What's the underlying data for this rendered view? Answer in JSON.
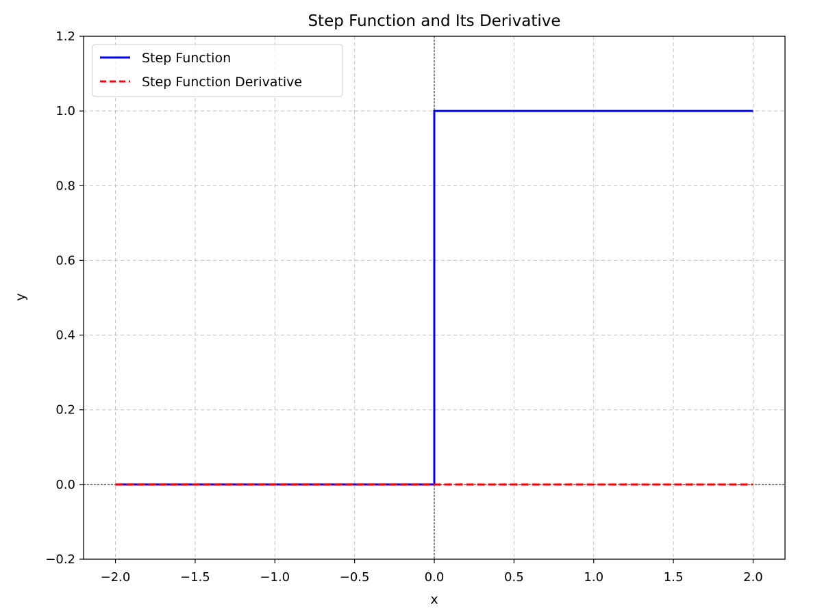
{
  "chart_data": {
    "type": "line",
    "title": "Step Function and Its Derivative",
    "xlabel": "x",
    "ylabel": "y",
    "xlim": [
      -2.2,
      2.2
    ],
    "ylim": [
      -0.2,
      1.2
    ],
    "xticks": [
      -2.0,
      -1.5,
      -1.0,
      -0.5,
      0.0,
      0.5,
      1.0,
      1.5,
      2.0
    ],
    "xtick_labels": [
      "−2.0",
      "−1.5",
      "−1.0",
      "−0.5",
      "0.0",
      "0.5",
      "1.0",
      "1.5",
      "2.0"
    ],
    "yticks": [
      -0.2,
      0.0,
      0.2,
      0.4,
      0.6,
      0.8,
      1.0,
      1.2
    ],
    "ytick_labels": [
      "−0.2",
      "0.0",
      "0.2",
      "0.4",
      "0.6",
      "0.8",
      "1.0",
      "1.2"
    ],
    "grid": true,
    "grid_style": "dashed",
    "legend_position": "top-left",
    "reference_lines": {
      "x": 0,
      "y": 0
    },
    "series": [
      {
        "name": "Step Function",
        "color": "#0000ff",
        "style": "solid",
        "x": [
          -2.0,
          0.0,
          0.0,
          2.0
        ],
        "y": [
          0.0,
          0.0,
          1.0,
          1.0
        ]
      },
      {
        "name": "Step Function Derivative",
        "color": "#ff0000",
        "style": "dashed",
        "x": [
          -2.0,
          2.0
        ],
        "y": [
          0.0,
          0.0
        ]
      }
    ]
  }
}
